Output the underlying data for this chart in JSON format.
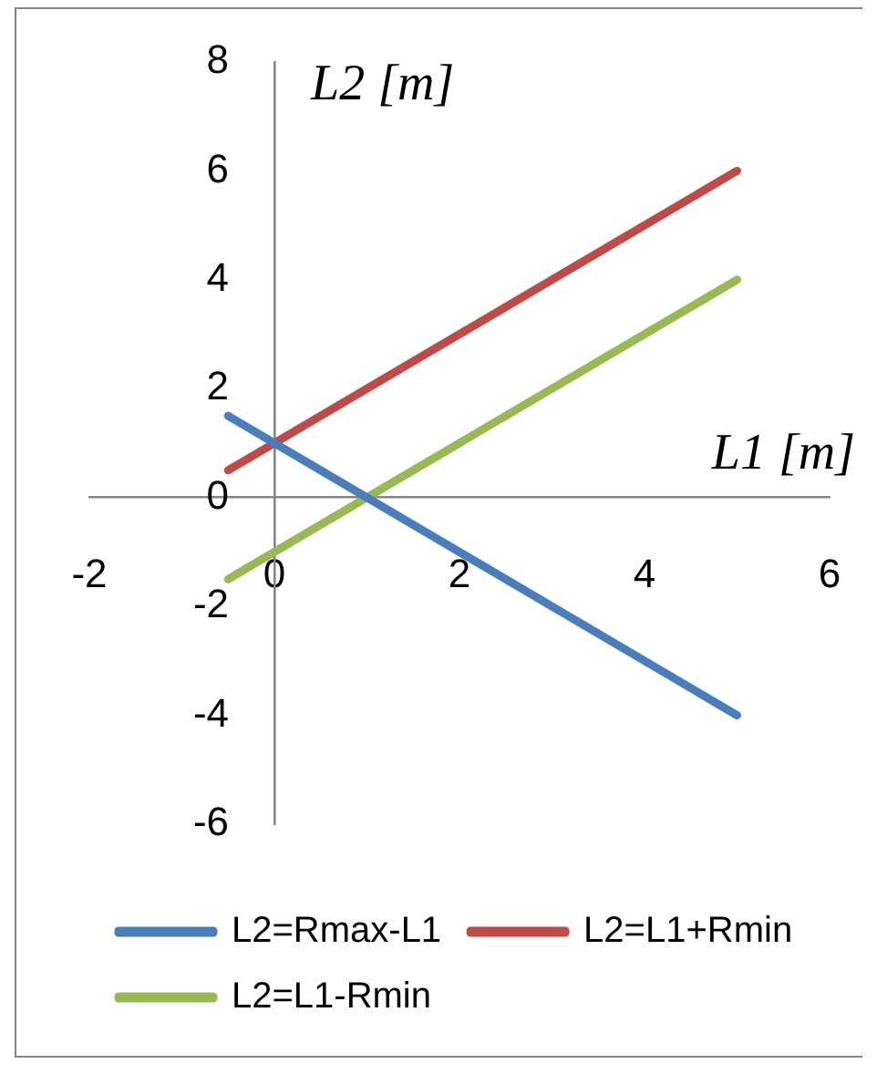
{
  "chart_data": {
    "type": "line",
    "xlabel": "L1 [m]",
    "ylabel": "L2 [m]",
    "xlim": [
      -2,
      6
    ],
    "ylim": [
      -6,
      8
    ],
    "xticks": [
      -2,
      0,
      2,
      4,
      6
    ],
    "yticks": [
      -6,
      -4,
      -2,
      0,
      2,
      4,
      6,
      8
    ],
    "grid": false,
    "legend": "bottom",
    "marker": "none",
    "line_style": "solid",
    "x": [
      -0.5,
      5
    ],
    "series": [
      {
        "name": "L2=Rmax-L1",
        "color": "#4a7ebb",
        "values": [
          1.5,
          -4
        ]
      },
      {
        "name": "L2=L1+Rmin",
        "color": "#be4b48",
        "values": [
          0.5,
          6
        ]
      },
      {
        "name": "L2=L1-Rmin",
        "color": "#98b954",
        "values": [
          -1.5,
          4
        ]
      }
    ]
  }
}
